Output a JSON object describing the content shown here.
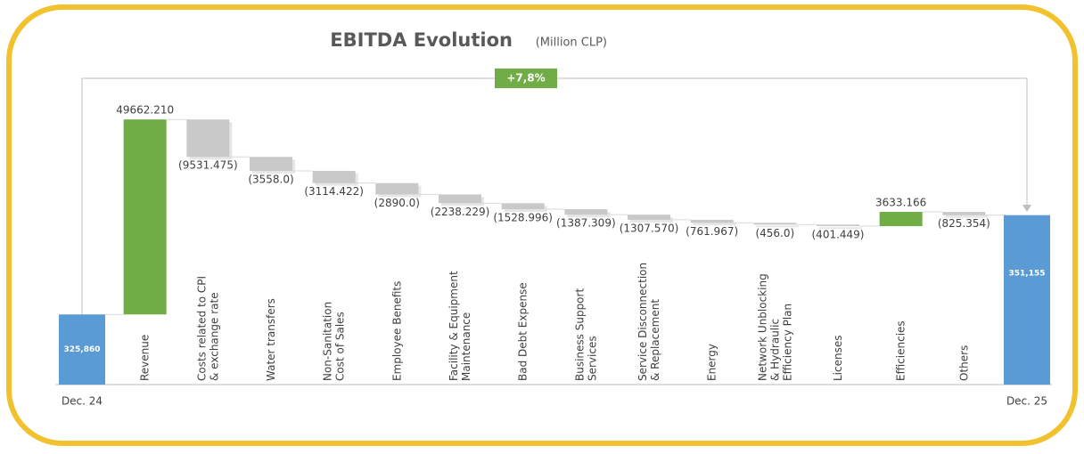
{
  "chart_data": {
    "type": "waterfall",
    "title": "EBITDA Evolution",
    "subtitle": "(Million CLP)",
    "annotation": "+7,8%",
    "categories": [
      "Dec. 24",
      "Revenue",
      "Costs related to CPI\n& exchange rate",
      "Water transfers",
      "Non-Sanitation\nCost of Sales",
      "Employee Benefits",
      "Facility & Equipment\nMaintenance",
      "Bad Debt Expense",
      "Business Support\nServices",
      "Service Disconnection\n& Replacement",
      "Energy",
      "Network Unblocking\n& Hydraulic\nEfficiency Plan",
      "Licenses",
      "Efficiencies",
      "Others",
      "Dec. 25"
    ],
    "values": [
      325860,
      49662.21,
      -9531.475,
      -3558.0,
      -3114.422,
      -2890.0,
      -2238.229,
      -1528.996,
      -1387.309,
      -1307.57,
      -761.967,
      -456.0,
      -401.449,
      3633.166,
      -825.354,
      351155
    ],
    "value_labels": [
      "325,860",
      "49662.210",
      "(9531.475)",
      "(3558.0)",
      "(3114.422)",
      "(2890.0)",
      "(2238.229)",
      "(1528.996)",
      "(1387.309)",
      "(1307.570)",
      "(761.967)",
      "(456.0)",
      "(401.449)",
      "3633.166",
      "(825.354)",
      "351,155"
    ],
    "colors": {
      "total": "#5b9bd5",
      "increase": "#70ad47",
      "decrease": "#c9c9c9"
    },
    "ylim": [
      308000,
      386000
    ]
  }
}
